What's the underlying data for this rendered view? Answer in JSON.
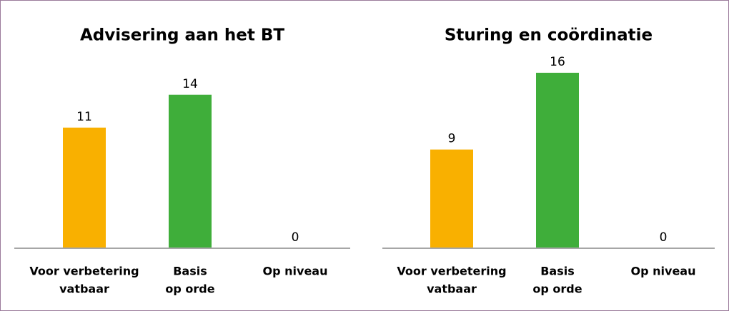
{
  "chart_data": [
    {
      "type": "bar",
      "title": "Advisering aan het BT",
      "categories": [
        [
          "Voor verbetering",
          "vatbaar"
        ],
        [
          "Basis",
          "op orde"
        ],
        [
          "Op niveau"
        ]
      ],
      "values": [
        11,
        14,
        0
      ],
      "colors": [
        "#f9b000",
        "#3fae3a",
        "#3fae3a"
      ]
    },
    {
      "type": "bar",
      "title": "Sturing en coördinatie",
      "categories": [
        [
          "Voor verbetering",
          "vatbaar"
        ],
        [
          "Basis",
          "op orde"
        ],
        [
          "Op niveau"
        ]
      ],
      "values": [
        9,
        16,
        0
      ],
      "colors": [
        "#f9b000",
        "#3fae3a",
        "#3fae3a"
      ]
    }
  ]
}
